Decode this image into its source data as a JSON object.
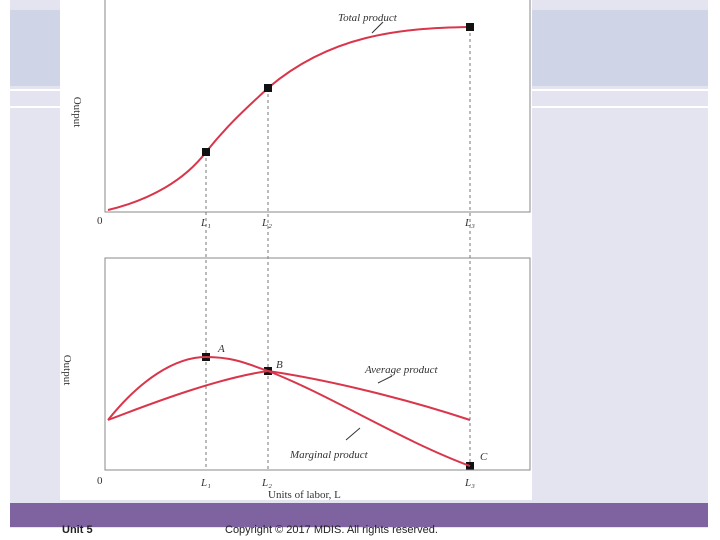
{
  "figure": {
    "top_panel": {
      "y_label": "Output",
      "curve_label": "Total product",
      "origin": "0",
      "x_markers": [
        "L₁",
        "L₂",
        "L₃"
      ]
    },
    "bottom_panel": {
      "y_label": "Output",
      "origin": "0",
      "x_markers": [
        "L₁",
        "L₂",
        "L₃"
      ],
      "points": [
        "A",
        "B",
        "C"
      ],
      "average_label": "Average product",
      "marginal_label": "Marginal product",
      "x_label": "Units of labor, L"
    }
  },
  "footer": {
    "unit": "Unit 5",
    "copyright": "Copyright © 2017 MDIS. All rights reserved."
  }
}
